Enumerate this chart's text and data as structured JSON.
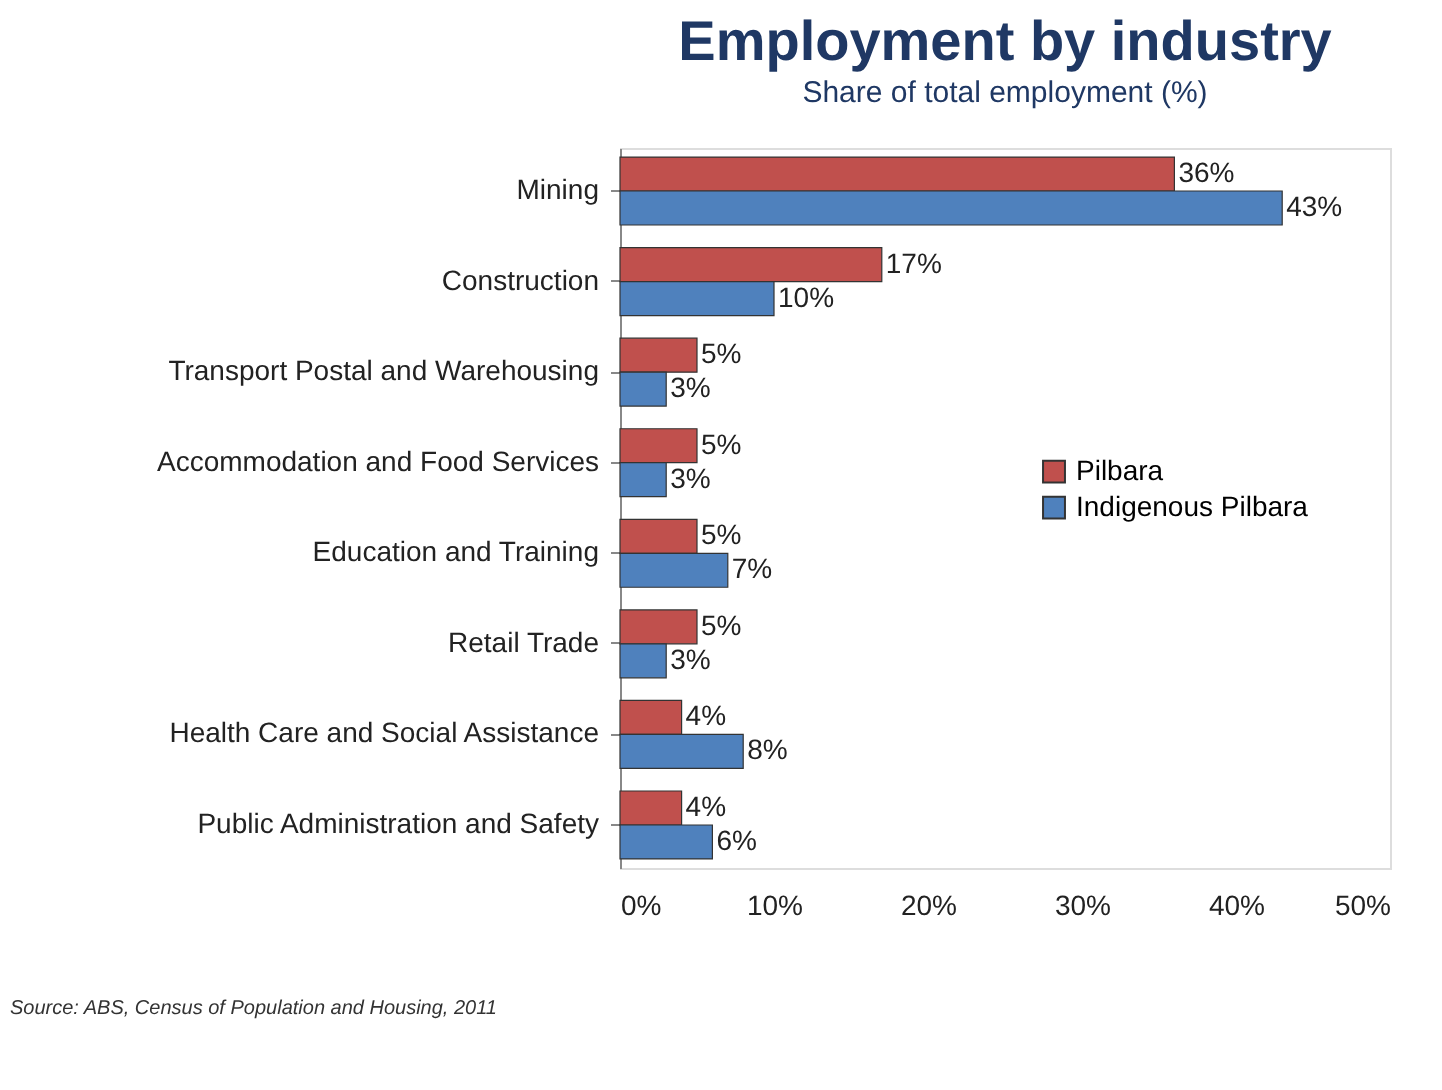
{
  "chart_data": {
    "type": "bar",
    "orientation": "horizontal",
    "title": "Employment by industry",
    "subtitle": "Share of total employment (%)",
    "categories": [
      "Mining",
      "Construction",
      "Transport Postal and Warehousing",
      "Accommodation and Food Services",
      "Education and Training",
      "Retail Trade",
      "Health Care and Social Assistance",
      "Public Administration and Safety"
    ],
    "series": [
      {
        "name": "Pilbara",
        "color": "#c0504d",
        "values": [
          36,
          17,
          5,
          5,
          5,
          5,
          4,
          4
        ],
        "value_labels": [
          "36%",
          "17%",
          "5%",
          "5%",
          "5%",
          "5%",
          "4%",
          "4%"
        ]
      },
      {
        "name": "Indigenous Pilbara",
        "color": "#4f81bd",
        "values": [
          43,
          10,
          3,
          3,
          7,
          3,
          8,
          6
        ],
        "value_labels": [
          "43%",
          "10%",
          "3%",
          "3%",
          "7%",
          "3%",
          "8%",
          "6%"
        ]
      }
    ],
    "xlim": [
      0,
      50
    ],
    "xticks": [
      {
        "value": 0,
        "label": "0%"
      },
      {
        "value": 10,
        "label": "10%"
      },
      {
        "value": 20,
        "label": "20%"
      },
      {
        "value": 30,
        "label": "30%"
      },
      {
        "value": 40,
        "label": "40%"
      },
      {
        "value": 50,
        "label": "50%"
      }
    ],
    "legend": "right",
    "grid": false,
    "annotations": [
      "Source: ABS, Census of Population and Housing, 2011"
    ]
  }
}
